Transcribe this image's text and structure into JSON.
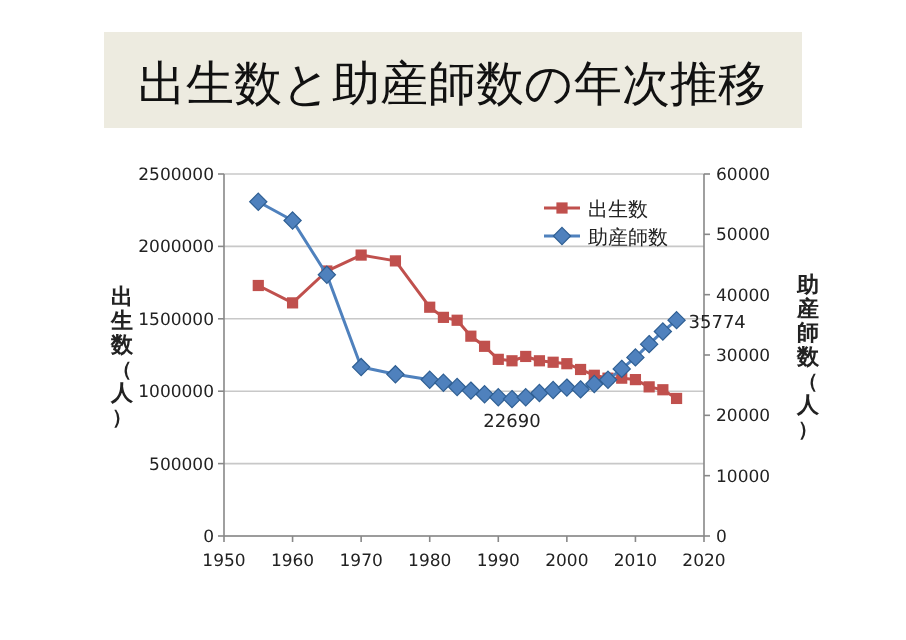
{
  "chart_data": {
    "type": "line",
    "title": "出生数と助産師数の年次推移",
    "ylabel": "出生数（人）",
    "y2label": "助産師数（人）",
    "xlim": [
      1950,
      2020
    ],
    "xticks": [
      1950,
      1960,
      1970,
      1980,
      1990,
      2000,
      2010,
      2020
    ],
    "ylim": [
      0,
      2500000
    ],
    "yticks": [
      0,
      500000,
      1000000,
      1500000,
      2000000,
      2500000
    ],
    "y2lim": [
      0,
      60000
    ],
    "y2ticks": [
      0,
      10000,
      20000,
      30000,
      40000,
      50000,
      60000
    ],
    "grid": "y",
    "legend": "top right",
    "series": [
      {
        "name": "出生数",
        "color": "#c0504d",
        "marker": "square",
        "x": [
          1955,
          1960,
          1965,
          1970,
          1975,
          1980,
          1982,
          1984,
          1986,
          1988,
          1990,
          1992,
          1994,
          1996,
          1998,
          2000,
          2002,
          2004,
          2006,
          2008,
          2010,
          2012,
          2014,
          2016
        ],
        "values": [
          1730000,
          1610000,
          1830000,
          1940000,
          1900000,
          1580000,
          1510000,
          1490000,
          1380000,
          1310000,
          1220000,
          1210000,
          1240000,
          1210000,
          1200000,
          1190000,
          1150000,
          1110000,
          1090000,
          1090000,
          1080000,
          1030000,
          1010000,
          950000
        ]
      },
      {
        "name": "助産師数",
        "color": "#4f81bd",
        "marker": "diamond",
        "axis": "y2",
        "value_labels": [
          null,
          null,
          null,
          null,
          null,
          null,
          null,
          null,
          null,
          null,
          null,
          "22690",
          null,
          null,
          null,
          null,
          null,
          null,
          null,
          null,
          null,
          null,
          null,
          "35774"
        ],
        "x": [
          1955,
          1960,
          1965,
          1970,
          1975,
          1980,
          1982,
          1984,
          1986,
          1988,
          1990,
          1992,
          1994,
          1996,
          1998,
          2000,
          2002,
          2004,
          2006,
          2008,
          2010,
          2012,
          2014,
          2016
        ],
        "values": [
          55400,
          52300,
          43300,
          28000,
          26800,
          25900,
          25400,
          24700,
          24100,
          23500,
          23000,
          22690,
          23000,
          23700,
          24200,
          24600,
          24300,
          25200,
          25900,
          27700,
          29600,
          31800,
          33900,
          35774
        ]
      }
    ]
  }
}
